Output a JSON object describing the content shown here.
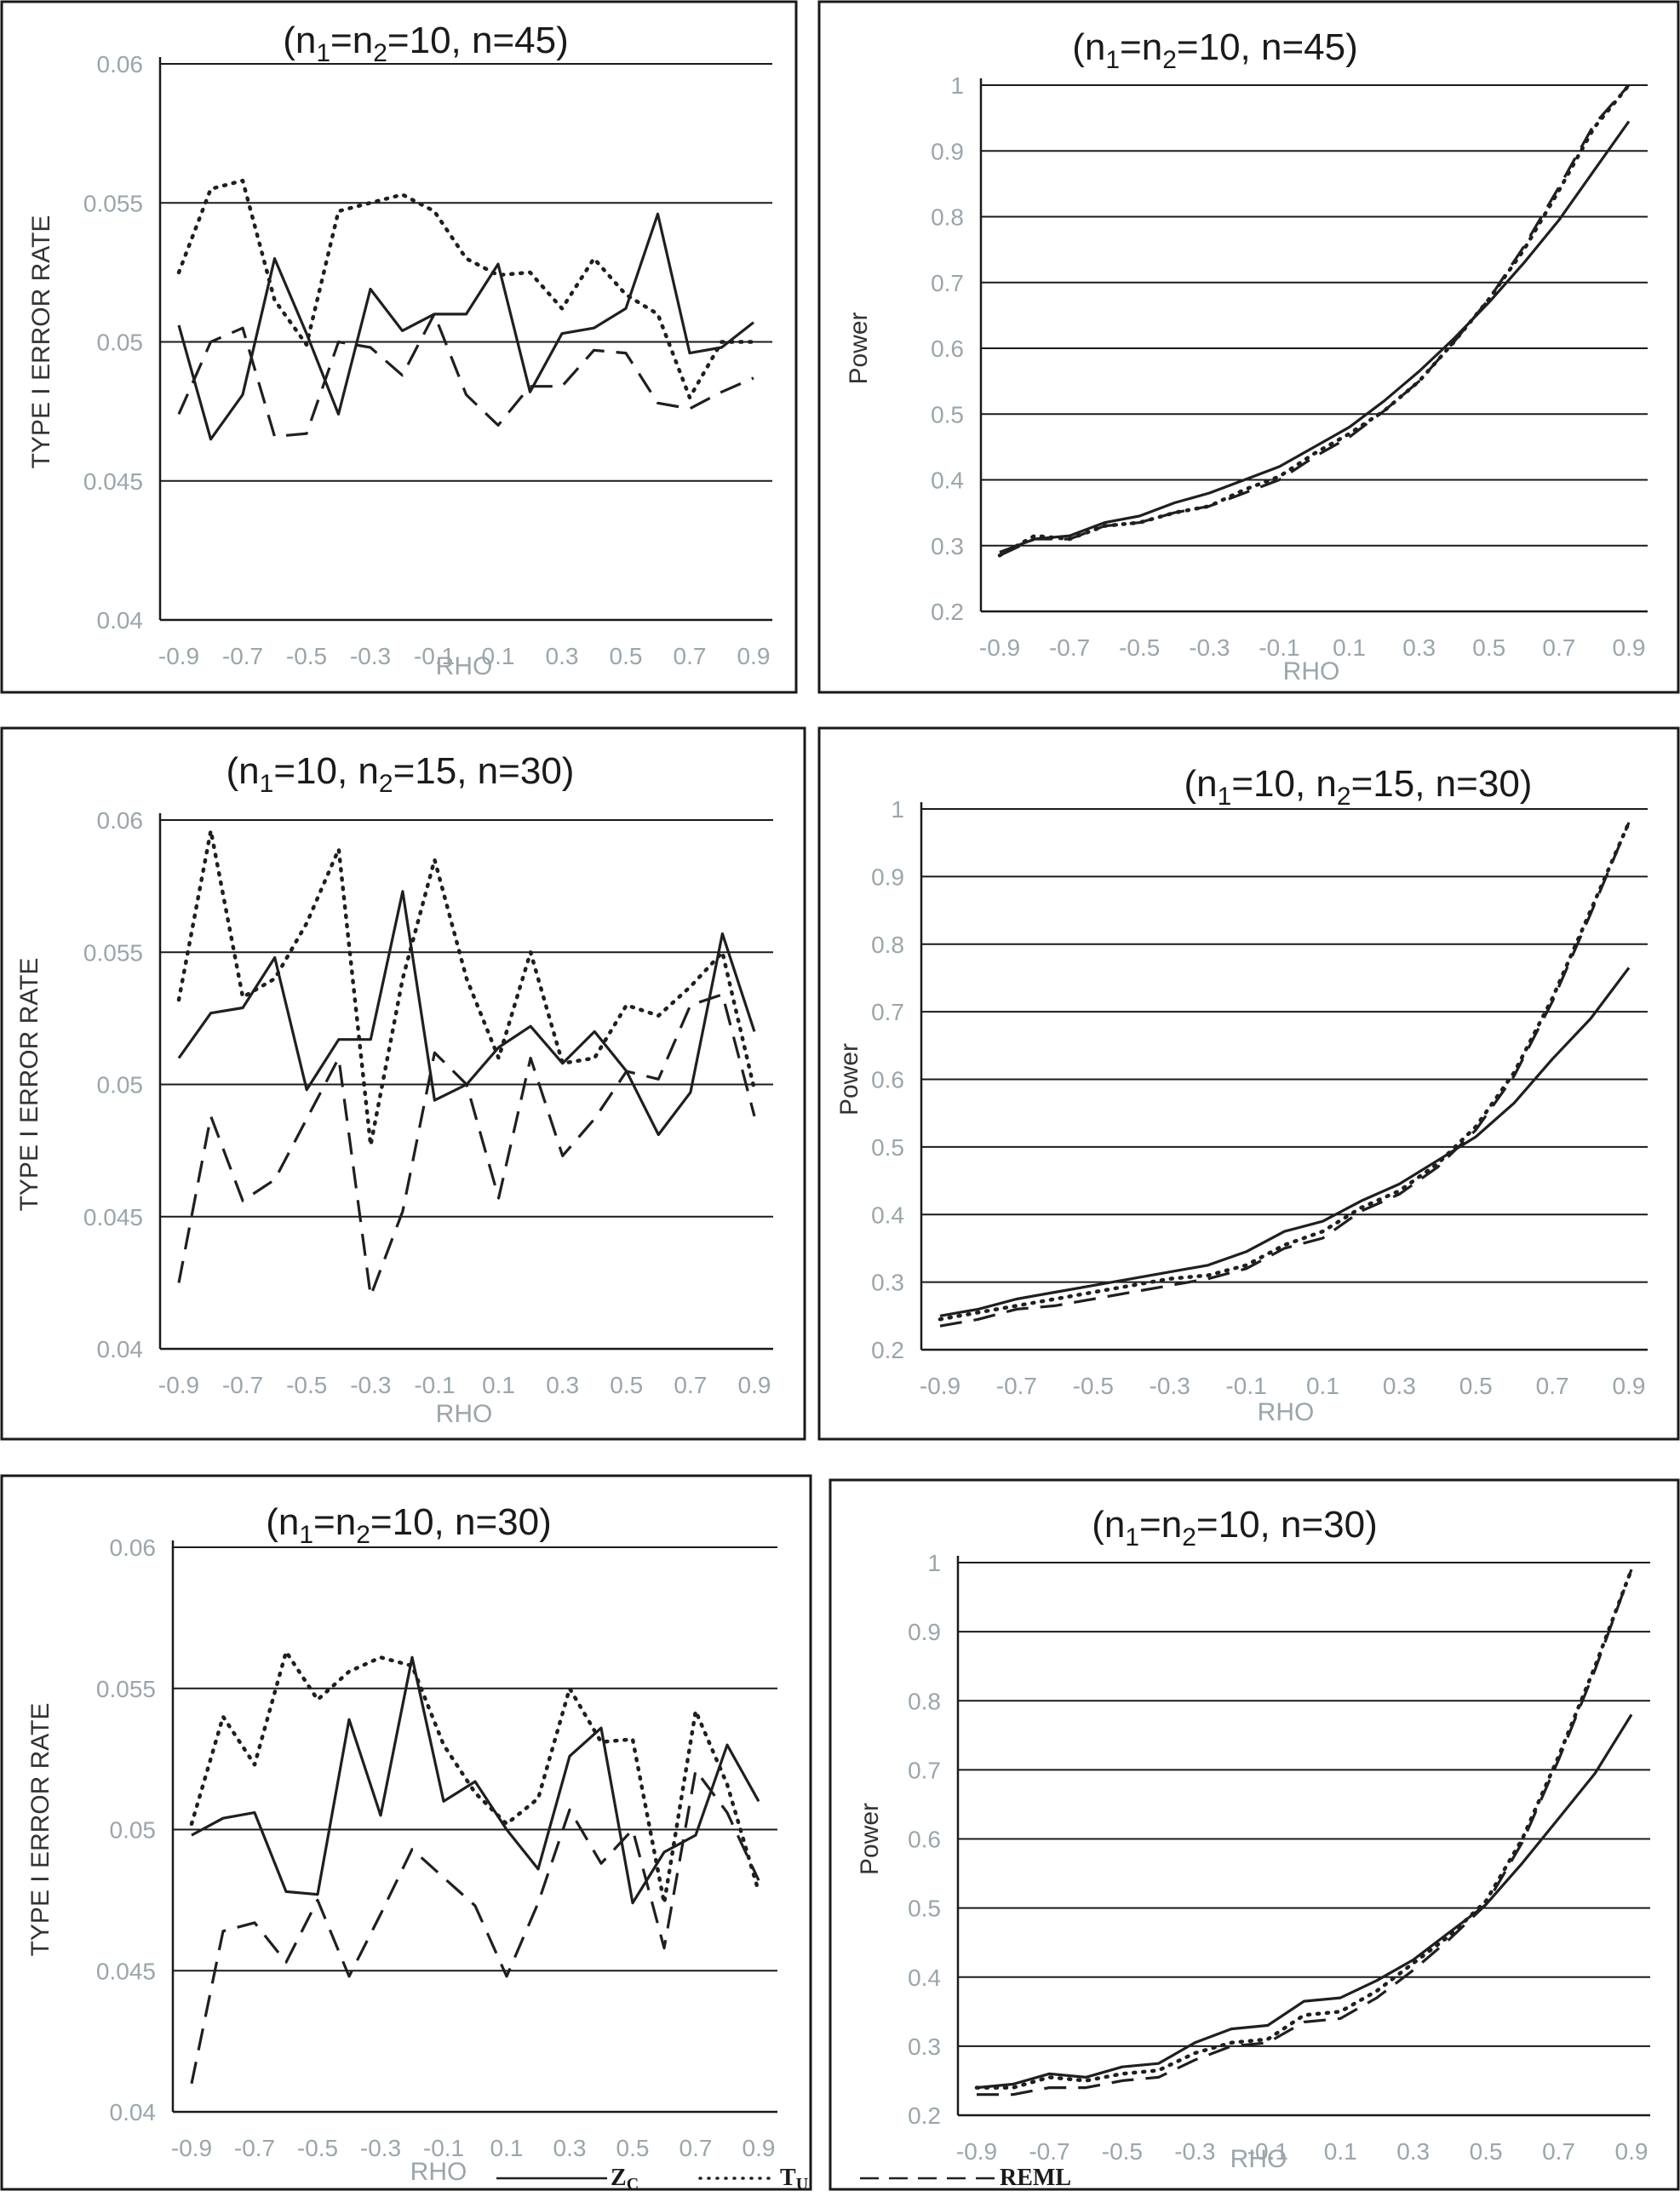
{
  "chart_data": [
    {
      "id": "p1",
      "type": "line",
      "title": {
        "main": "(n",
        "sub1": "1",
        "mid": "=n",
        "sub2": "2",
        "tail": "=10, n=45)"
      },
      "xlabel": "RHO",
      "ylabel": "TYPE I ERROR RATE",
      "ylim": [
        0.04,
        0.06
      ],
      "yticks": [
        0.04,
        0.045,
        0.05,
        0.055,
        0.06
      ],
      "ytick_labels": [
        "0.04",
        "0.045",
        "0.05",
        "0.055",
        "0.06"
      ],
      "x": [
        -0.9,
        -0.8,
        -0.7,
        -0.6,
        -0.5,
        -0.4,
        -0.3,
        -0.2,
        -0.1,
        0.0,
        0.1,
        0.2,
        0.3,
        0.4,
        0.5,
        0.6,
        0.7,
        0.8,
        0.9
      ],
      "xtick_labels": [
        "-0.9",
        "-0.7",
        "-0.5",
        "-0.3",
        "-0.1",
        "0.1",
        "0.3",
        "0.5",
        "0.7",
        "0.9"
      ],
      "series": [
        {
          "name": "Z_C",
          "style": "solid",
          "values": [
            0.0506,
            0.0465,
            0.0481,
            0.053,
            0.0503,
            0.0474,
            0.0519,
            0.0504,
            0.051,
            0.051,
            0.0528,
            0.0482,
            0.0503,
            0.0505,
            0.0512,
            0.0546,
            0.0496,
            0.0498,
            0.0507
          ]
        },
        {
          "name": "T_U",
          "style": "dotted",
          "values": [
            0.0525,
            0.0555,
            0.0558,
            0.0515,
            0.0499,
            0.0547,
            0.055,
            0.0553,
            0.0547,
            0.053,
            0.0524,
            0.0525,
            0.0512,
            0.053,
            0.0517,
            0.051,
            0.048,
            0.05,
            0.05
          ]
        },
        {
          "name": "REML",
          "style": "dashed",
          "values": [
            0.0474,
            0.05,
            0.0505,
            0.0466,
            0.0467,
            0.05,
            0.0498,
            0.0488,
            0.051,
            0.0481,
            0.047,
            0.0484,
            0.0484,
            0.0497,
            0.0496,
            0.0478,
            0.0476,
            0.0482,
            0.0487
          ]
        }
      ]
    },
    {
      "id": "p2",
      "type": "line",
      "title": {
        "main": "(n",
        "sub1": "1",
        "mid": "=n",
        "sub2": "2",
        "tail": "=10, n=45)"
      },
      "xlabel": "RHO",
      "ylabel": "Power",
      "ylim": [
        0.2,
        1.0
      ],
      "yticks": [
        0.2,
        0.3,
        0.4,
        0.5,
        0.6,
        0.7,
        0.8,
        0.9,
        1.0
      ],
      "ytick_labels": [
        "0.2",
        "0.3",
        "0.4",
        "0.5",
        "0.6",
        "0.7",
        "0.8",
        "0.9",
        "1"
      ],
      "x": [
        -0.9,
        -0.8,
        -0.7,
        -0.6,
        -0.5,
        -0.4,
        -0.3,
        -0.2,
        -0.1,
        0.0,
        0.1,
        0.2,
        0.3,
        0.4,
        0.5,
        0.6,
        0.7,
        0.8,
        0.9
      ],
      "xtick_labels": [
        "-0.9",
        "-0.7",
        "-0.5",
        "-0.3",
        "-0.1",
        "0.1",
        "0.3",
        "0.5",
        "0.7",
        "0.9"
      ],
      "series": [
        {
          "name": "Z_C",
          "style": "solid",
          "values": [
            0.29,
            0.31,
            0.315,
            0.335,
            0.345,
            0.365,
            0.38,
            0.4,
            0.42,
            0.45,
            0.48,
            0.52,
            0.565,
            0.615,
            0.67,
            0.73,
            0.795,
            0.87,
            0.945
          ]
        },
        {
          "name": "T_U",
          "style": "dotted",
          "values": [
            0.285,
            0.315,
            0.31,
            0.33,
            0.335,
            0.35,
            0.36,
            0.385,
            0.405,
            0.44,
            0.47,
            0.505,
            0.55,
            0.61,
            0.675,
            0.75,
            0.84,
            0.935,
            1.0
          ]
        },
        {
          "name": "REML",
          "style": "dashed",
          "values": [
            0.285,
            0.31,
            0.31,
            0.33,
            0.335,
            0.35,
            0.36,
            0.38,
            0.4,
            0.435,
            0.465,
            0.505,
            0.55,
            0.61,
            0.675,
            0.755,
            0.845,
            0.94,
            1.0
          ]
        }
      ]
    },
    {
      "id": "p3",
      "type": "line",
      "title": {
        "main": "(n",
        "sub1": "1",
        "mid": "=10, n",
        "sub2": "2",
        "tail": "=15, n=30)"
      },
      "xlabel": "RHO",
      "ylabel": "TYPE I ERROR RATE",
      "ylim": [
        0.04,
        0.06
      ],
      "yticks": [
        0.04,
        0.045,
        0.05,
        0.055,
        0.06
      ],
      "ytick_labels": [
        "0.04",
        "0.045",
        "0.05",
        "0.055",
        "0.06"
      ],
      "x": [
        -0.9,
        -0.8,
        -0.7,
        -0.6,
        -0.5,
        -0.4,
        -0.3,
        -0.2,
        -0.1,
        0.0,
        0.1,
        0.2,
        0.3,
        0.4,
        0.5,
        0.6,
        0.7,
        0.8,
        0.9
      ],
      "xtick_labels": [
        "-0.9",
        "-0.7",
        "-0.5",
        "-0.3",
        "-0.1",
        "0.1",
        "0.3",
        "0.5",
        "0.7",
        "0.9"
      ],
      "series": [
        {
          "name": "Z_C",
          "style": "solid",
          "values": [
            0.051,
            0.0527,
            0.0529,
            0.0548,
            0.0498,
            0.0517,
            0.0517,
            0.0573,
            0.0494,
            0.05,
            0.0514,
            0.0522,
            0.0508,
            0.052,
            0.0505,
            0.0481,
            0.0497,
            0.0557,
            0.052
          ]
        },
        {
          "name": "T_U",
          "style": "dotted",
          "values": [
            0.0532,
            0.0596,
            0.0533,
            0.054,
            0.0561,
            0.0589,
            0.0477,
            0.054,
            0.0585,
            0.054,
            0.051,
            0.055,
            0.0508,
            0.051,
            0.053,
            0.0526,
            0.0537,
            0.055,
            0.0498
          ]
        },
        {
          "name": "REML",
          "style": "dashed",
          "values": [
            0.0425,
            0.0488,
            0.0456,
            0.0464,
            0.0487,
            0.051,
            0.042,
            0.0452,
            0.0512,
            0.05,
            0.0457,
            0.051,
            0.0473,
            0.0487,
            0.0505,
            0.0502,
            0.053,
            0.0534,
            0.0488
          ]
        }
      ]
    },
    {
      "id": "p4",
      "type": "line",
      "title": {
        "main": "(n",
        "sub1": "1",
        "mid": "=10, n",
        "sub2": "2",
        "tail": "=15, n=30)"
      },
      "xlabel": "RHO",
      "ylabel": "Power",
      "ylim": [
        0.2,
        1.0
      ],
      "yticks": [
        0.2,
        0.3,
        0.4,
        0.5,
        0.6,
        0.7,
        0.8,
        0.9,
        1.0
      ],
      "ytick_labels": [
        "0.2",
        "0.3",
        "0.4",
        "0.5",
        "0.6",
        "0.7",
        "0.8",
        "0.9",
        "1"
      ],
      "x": [
        -0.9,
        -0.8,
        -0.7,
        -0.6,
        -0.5,
        -0.4,
        -0.3,
        -0.2,
        -0.1,
        0.0,
        0.1,
        0.2,
        0.3,
        0.4,
        0.5,
        0.6,
        0.7,
        0.8,
        0.9
      ],
      "xtick_labels": [
        "-0.9",
        "-0.7",
        "-0.5",
        "-0.3",
        "-0.1",
        "0.1",
        "0.3",
        "0.5",
        "0.7",
        "0.9"
      ],
      "series": [
        {
          "name": "Z_C",
          "style": "solid",
          "values": [
            0.25,
            0.26,
            0.275,
            0.285,
            0.295,
            0.305,
            0.315,
            0.325,
            0.345,
            0.375,
            0.39,
            0.42,
            0.445,
            0.48,
            0.515,
            0.565,
            0.63,
            0.69,
            0.765
          ]
        },
        {
          "name": "T_U",
          "style": "dotted",
          "values": [
            0.245,
            0.255,
            0.265,
            0.275,
            0.285,
            0.295,
            0.305,
            0.31,
            0.325,
            0.355,
            0.375,
            0.41,
            0.435,
            0.475,
            0.53,
            0.61,
            0.72,
            0.85,
            0.98
          ]
        },
        {
          "name": "REML",
          "style": "dashed",
          "values": [
            0.235,
            0.245,
            0.26,
            0.265,
            0.275,
            0.285,
            0.295,
            0.305,
            0.32,
            0.35,
            0.365,
            0.405,
            0.43,
            0.47,
            0.525,
            0.605,
            0.715,
            0.845,
            0.98
          ]
        }
      ]
    },
    {
      "id": "p5",
      "type": "line",
      "title": {
        "main": "(n",
        "sub1": "1",
        "mid": "=n",
        "sub2": "2",
        "tail": "=10, n=30)"
      },
      "xlabel": "RHO",
      "ylabel": "TYPE I ERROR RATE",
      "ylim": [
        0.04,
        0.06
      ],
      "yticks": [
        0.04,
        0.045,
        0.05,
        0.055,
        0.06
      ],
      "ytick_labels": [
        "0.04",
        "0.045",
        "0.05",
        "0.055",
        "0.06"
      ],
      "x": [
        -0.9,
        -0.8,
        -0.7,
        -0.6,
        -0.5,
        -0.4,
        -0.3,
        -0.2,
        -0.1,
        0.0,
        0.1,
        0.2,
        0.3,
        0.4,
        0.5,
        0.6,
        0.7,
        0.8,
        0.9
      ],
      "xtick_labels": [
        "-0.9",
        "-0.7",
        "-0.5",
        "-0.3",
        "-0.1",
        "0.1",
        "0.3",
        "0.5",
        "0.7",
        "0.9"
      ],
      "series": [
        {
          "name": "Z_C",
          "style": "solid",
          "values": [
            0.0498,
            0.0504,
            0.0506,
            0.0478,
            0.0477,
            0.0539,
            0.0505,
            0.0561,
            0.051,
            0.0517,
            0.05,
            0.0486,
            0.0526,
            0.0536,
            0.0474,
            0.0492,
            0.0498,
            0.053,
            0.051
          ]
        },
        {
          "name": "T_U",
          "style": "dotted",
          "values": [
            0.0502,
            0.054,
            0.0523,
            0.0563,
            0.0546,
            0.0556,
            0.0561,
            0.0558,
            0.053,
            0.0513,
            0.0502,
            0.0511,
            0.055,
            0.0531,
            0.0532,
            0.0474,
            0.0542,
            0.0516,
            0.0478
          ]
        },
        {
          "name": "REML",
          "style": "dashed",
          "values": [
            0.041,
            0.0464,
            0.0467,
            0.0453,
            0.0475,
            0.0448,
            0.047,
            0.0493,
            0.0483,
            0.0473,
            0.0448,
            0.0474,
            0.0507,
            0.0488,
            0.05,
            0.0458,
            0.0521,
            0.0506,
            0.0482
          ]
        }
      ]
    },
    {
      "id": "p6",
      "type": "line",
      "title": {
        "main": "(n",
        "sub1": "1",
        "mid": "=n",
        "sub2": "2",
        "tail": "=10, n=30)"
      },
      "xlabel": "RHO",
      "ylabel": "Power",
      "ylim": [
        0.2,
        1.0
      ],
      "yticks": [
        0.2,
        0.3,
        0.4,
        0.5,
        0.6,
        0.7,
        0.8,
        0.9,
        1.0
      ],
      "ytick_labels": [
        "0.2",
        "0.3",
        "0.4",
        "0.5",
        "0.6",
        "0.7",
        "0.8",
        "0.9",
        "1"
      ],
      "x": [
        -0.9,
        -0.8,
        -0.7,
        -0.6,
        -0.5,
        -0.4,
        -0.3,
        -0.2,
        -0.1,
        0.0,
        0.1,
        0.2,
        0.3,
        0.4,
        0.5,
        0.6,
        0.7,
        0.8,
        0.9
      ],
      "xtick_labels": [
        "-0.9",
        "-0.7",
        "-0.5",
        "-0.3",
        "-0.1",
        "0.1",
        "0.3",
        "0.5",
        "0.7",
        "0.9"
      ],
      "series": [
        {
          "name": "Z_C",
          "style": "solid",
          "values": [
            0.24,
            0.245,
            0.26,
            0.255,
            0.27,
            0.275,
            0.305,
            0.325,
            0.33,
            0.365,
            0.37,
            0.395,
            0.425,
            0.465,
            0.505,
            0.565,
            0.63,
            0.695,
            0.78
          ]
        },
        {
          "name": "T_U",
          "style": "dotted",
          "values": [
            0.24,
            0.24,
            0.255,
            0.25,
            0.26,
            0.265,
            0.29,
            0.305,
            0.31,
            0.345,
            0.35,
            0.38,
            0.42,
            0.46,
            0.51,
            0.6,
            0.72,
            0.85,
            0.99
          ]
        },
        {
          "name": "REML",
          "style": "dashed",
          "values": [
            0.23,
            0.23,
            0.24,
            0.24,
            0.25,
            0.255,
            0.28,
            0.3,
            0.305,
            0.335,
            0.34,
            0.37,
            0.41,
            0.455,
            0.505,
            0.595,
            0.715,
            0.845,
            0.99
          ]
        }
      ]
    }
  ],
  "legend": [
    {
      "name": "Z",
      "sub": "C",
      "style": "solid"
    },
    {
      "name": "T",
      "sub": "U",
      "style": "dotted"
    },
    {
      "name": "REML",
      "sub": "",
      "style": "dashed"
    }
  ]
}
